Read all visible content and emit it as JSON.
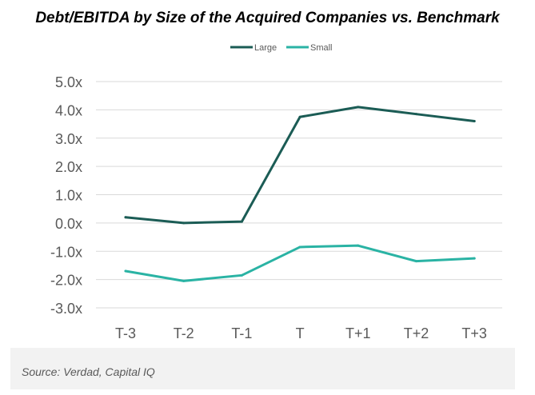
{
  "chart_data": {
    "type": "line",
    "title": "Debt/EBITDA by Size of the Acquired Companies vs. Benchmark",
    "categories": [
      "T-3",
      "T-2",
      "T-1",
      "T",
      "T+1",
      "T+2",
      "T+3"
    ],
    "y_tick_labels": [
      "5.0x",
      "4.0x",
      "3.0x",
      "2.0x",
      "1.0x",
      "0.0x",
      "-1.0x",
      "-2.0x",
      "-3.0x"
    ],
    "ylim": [
      -3.0,
      5.0
    ],
    "grid": true,
    "legend_position": "top",
    "series": [
      {
        "name": "Large",
        "color": "#1b5c55",
        "values": [
          0.2,
          0.0,
          0.05,
          3.75,
          4.1,
          3.85,
          3.6
        ]
      },
      {
        "name": "Small",
        "color": "#2ab3a4",
        "values": [
          -1.7,
          -2.05,
          -1.85,
          -0.85,
          -0.8,
          -1.35,
          -1.25
        ]
      }
    ],
    "source": "Source: Verdad, Capital IQ"
  }
}
